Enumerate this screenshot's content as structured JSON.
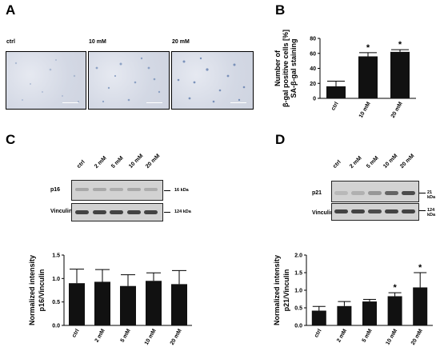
{
  "panels": {
    "a": {
      "letter": "A",
      "images": [
        "ctrl",
        "10 mM",
        "20 mM"
      ]
    },
    "b": {
      "letter": "B"
    },
    "c": {
      "letter": "C",
      "lanes": [
        "ctrl",
        "2 mM",
        "5 mM",
        "10 mM",
        "20 mM"
      ],
      "blots": [
        {
          "label": "p16",
          "kda": "16 kDa"
        },
        {
          "label": "Vinculin",
          "kda": "124 kDa"
        }
      ]
    },
    "d": {
      "letter": "D",
      "lanes": [
        "ctrl",
        "2 mM",
        "5 mM",
        "10 mM",
        "20 mM"
      ],
      "blots": [
        {
          "label": "p21",
          "kda": "21 kDa"
        },
        {
          "label": "Vinculin",
          "kda": "124 kDa"
        }
      ]
    }
  },
  "chart_data": [
    {
      "id": "b",
      "type": "bar",
      "categories": [
        "ctrl",
        "10 mM",
        "20 mM"
      ],
      "values": [
        16,
        56,
        62
      ],
      "errors": [
        7,
        5,
        3
      ],
      "significance": [
        "",
        "*",
        "*"
      ],
      "ylabel": [
        "Number of",
        "β-gal positive cells [%]",
        "SA-β-gal staining"
      ],
      "ylim": [
        0,
        80
      ],
      "yticks": [
        "0",
        "20",
        "40",
        "60",
        "80"
      ],
      "ytick_values": [
        0,
        20,
        40,
        60,
        80
      ],
      "bar_color": "#111111"
    },
    {
      "id": "c",
      "type": "bar",
      "categories": [
        "ctrl",
        "2 mM",
        "5 mM",
        "10 mM",
        "20 mM"
      ],
      "values": [
        0.9,
        0.93,
        0.84,
        0.95,
        0.88
      ],
      "errors": [
        0.3,
        0.26,
        0.24,
        0.17,
        0.29
      ],
      "significance": [
        "",
        "",
        "",
        "",
        ""
      ],
      "ylabel": [
        "Normalized intensity",
        "p16/Vinculin"
      ],
      "ylim": [
        0,
        1.5
      ],
      "yticks": [
        "0.0",
        "0.5",
        "1.0",
        "1.5"
      ],
      "ytick_values": [
        0,
        0.5,
        1.0,
        1.5
      ],
      "bar_color": "#111111"
    },
    {
      "id": "d",
      "type": "bar",
      "categories": [
        "ctrl",
        "2 mM",
        "5 mM",
        "10 mM",
        "20 mM"
      ],
      "values": [
        0.42,
        0.55,
        0.68,
        0.83,
        1.08
      ],
      "errors": [
        0.12,
        0.13,
        0.06,
        0.1,
        0.42
      ],
      "significance": [
        "",
        "",
        "",
        "*",
        "*"
      ],
      "ylabel": [
        "Normalized intensity",
        "p21/Vinculin"
      ],
      "ylim": [
        0,
        2.0
      ],
      "yticks": [
        "0.0",
        "0.5",
        "1.0",
        "1.5",
        "2.0"
      ],
      "ytick_values": [
        0,
        0.5,
        1.0,
        1.5,
        2.0
      ],
      "bar_color": "#111111"
    }
  ],
  "colors": {
    "bar": "#111111",
    "micro_bg": "#d3d8e4",
    "blot_bg": "#d2d2d2",
    "band": "#2a2a2a"
  }
}
